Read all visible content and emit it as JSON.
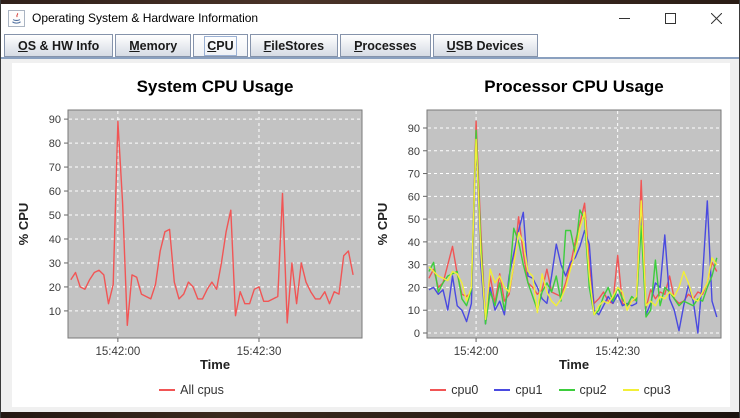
{
  "window": {
    "title": "Operating System & Hardware Information"
  },
  "tabs": [
    {
      "mn": "O",
      "rest": "S & HW Info",
      "selected": false
    },
    {
      "mn": "M",
      "rest": "emory",
      "selected": false
    },
    {
      "mn": "C",
      "rest": "PU",
      "selected": true
    },
    {
      "mn": "F",
      "rest": "ileStores",
      "selected": false
    },
    {
      "mn": "P",
      "rest": "rocesses",
      "selected": false
    },
    {
      "mn": "U",
      "rest": "SB Devices",
      "selected": false
    }
  ],
  "colors": {
    "plot_background": "#c3c3c3",
    "gridline": "#ffffff",
    "series_red": "#f15555",
    "series_blue": "#4a4ae0",
    "series_green": "#3dcd3d",
    "series_yellow": "#f2ef38"
  },
  "chart_data": [
    {
      "type": "line",
      "title": "System CPU Usage",
      "xlabel": "Time",
      "ylabel": "% CPU",
      "yticks": [
        10,
        20,
        30,
        40,
        50,
        60,
        70,
        80,
        90
      ],
      "ylim": [
        -1.3,
        93.8
      ],
      "xlim": [
        -10.6,
        51.9
      ],
      "xticks": [
        {
          "sec": 0,
          "label": "15:42:00"
        },
        {
          "sec": 30,
          "label": "15:42:30"
        }
      ],
      "x_start": -10,
      "x_step": 1,
      "series": [
        {
          "name": "All cpus",
          "color": "#f15555",
          "values": [
            23,
            26,
            20,
            19,
            23,
            26,
            27,
            25,
            13,
            21,
            89,
            55,
            4,
            25,
            24,
            17,
            16,
            15,
            21,
            35,
            43,
            44,
            22,
            15,
            17,
            22,
            20,
            15,
            15,
            19,
            22,
            19,
            30,
            43,
            52,
            8,
            18,
            13,
            13,
            19,
            20,
            14,
            14,
            15,
            16,
            59,
            5,
            30,
            13,
            30,
            22,
            18,
            15,
            15,
            18,
            13,
            18,
            17,
            33,
            35,
            25
          ]
        }
      ]
    },
    {
      "type": "line",
      "title": "Processor CPU Usage",
      "xlabel": "Time",
      "ylabel": "% CPU",
      "yticks": [
        0,
        10,
        20,
        30,
        40,
        50,
        60,
        70,
        80,
        90
      ],
      "ylim": [
        -2.2,
        97.9
      ],
      "xlim": [
        -10.4,
        51.9
      ],
      "xticks": [
        {
          "sec": 0,
          "label": "15:42:00"
        },
        {
          "sec": 30,
          "label": "15:42:30"
        }
      ],
      "x_start": -10,
      "x_step": 1,
      "series": [
        {
          "name": "cpu0",
          "color": "#f15555",
          "values": [
            24,
            28,
            20,
            22,
            30,
            38,
            26,
            17,
            16,
            18,
            93,
            45,
            5,
            25,
            13,
            26,
            14,
            17,
            30,
            51,
            35,
            22,
            20,
            17,
            19,
            28,
            18,
            17,
            16,
            22,
            30,
            40,
            48,
            57,
            30,
            13,
            15,
            18,
            14,
            13,
            34,
            13,
            12,
            14,
            15,
            67,
            11,
            19,
            15,
            18,
            17,
            25,
            15,
            13,
            14,
            17,
            15,
            18,
            17,
            22,
            31,
            27
          ]
        },
        {
          "name": "cpu1",
          "color": "#4a4ae0",
          "values": [
            19,
            20,
            17,
            19,
            10,
            25,
            12,
            10,
            5,
            13,
            83,
            30,
            4,
            20,
            10,
            14,
            8,
            25,
            35,
            45,
            53,
            25,
            24,
            20,
            15,
            13,
            25,
            39,
            30,
            25,
            31,
            33,
            38,
            45,
            39,
            10,
            8,
            12,
            16,
            13,
            17,
            12,
            13,
            12,
            13,
            53,
            8,
            13,
            22,
            20,
            43,
            15,
            10,
            1,
            12,
            21,
            14,
            0,
            25,
            58,
            14,
            7
          ]
        },
        {
          "name": "cpu2",
          "color": "#3dcd3d",
          "values": [
            27,
            31,
            18,
            22,
            25,
            26,
            27,
            15,
            12,
            19,
            89,
            40,
            4,
            18,
            12,
            22,
            10,
            23,
            46,
            40,
            30,
            22,
            16,
            10,
            18,
            22,
            18,
            25,
            14,
            45,
            45,
            35,
            54,
            50,
            20,
            8,
            10,
            16,
            20,
            14,
            20,
            15,
            12,
            16,
            14,
            47,
            7,
            10,
            32,
            12,
            20,
            18,
            15,
            12,
            14,
            13,
            12,
            15,
            14,
            20,
            25,
            33
          ]
        },
        {
          "name": "cpu3",
          "color": "#f2ef38",
          "values": [
            29,
            27,
            25,
            24,
            23,
            27,
            26,
            22,
            14,
            20,
            85,
            35,
            6,
            28,
            22,
            25,
            20,
            18,
            30,
            44,
            40,
            27,
            25,
            9,
            26,
            18,
            14,
            12,
            15,
            20,
            28,
            35,
            46,
            53,
            25,
            8,
            12,
            14,
            13,
            16,
            20,
            18,
            10,
            14,
            16,
            58,
            12,
            14,
            12,
            16,
            15,
            18,
            16,
            20,
            27,
            22,
            15,
            14,
            18,
            22,
            33,
            30
          ]
        }
      ]
    }
  ]
}
